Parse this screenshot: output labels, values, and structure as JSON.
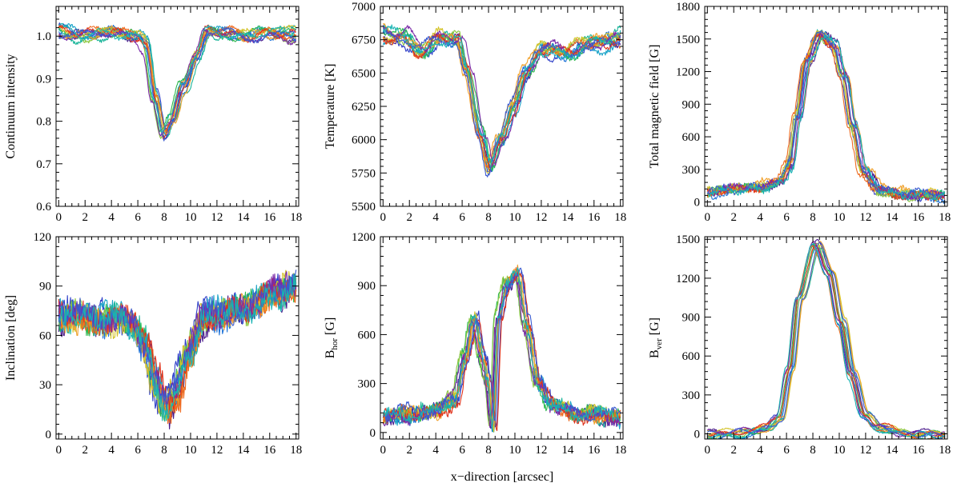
{
  "figure": {
    "shared_xlabel": "x−direction  [arcsec]"
  },
  "colors": {
    "series_palette": [
      "#4b1a8c",
      "#2f3fc8",
      "#1e73d8",
      "#1aa3c8",
      "#1bb59a",
      "#2db84f",
      "#8cc63e",
      "#d4c42c",
      "#f0a02a",
      "#ee6a1f",
      "#e0331c",
      "#7a2aa8",
      "#3a5ad0",
      "#17b3b3"
    ]
  },
  "chart_data": [
    {
      "type": "line",
      "ylabel": "Continuum intensity",
      "ylabel_sub": "",
      "ylabel_unit": "",
      "x_range": [
        0,
        18
      ],
      "xlim": [
        -0.2,
        18.2
      ],
      "ylim": [
        0.6,
        1.07
      ],
      "yticks": [
        0.6,
        0.7,
        0.8,
        0.9,
        1.0
      ],
      "ytick_labels": [
        "0.6",
        "0.7",
        "0.8",
        "0.9",
        "1.0"
      ],
      "xticks": [
        0,
        2,
        4,
        6,
        8,
        10,
        12,
        14,
        16,
        18
      ],
      "xtick_labels": [
        "0",
        "2",
        "4",
        "6",
        "8",
        "10",
        "12",
        "14",
        "16",
        "18"
      ],
      "n_series": 14,
      "profile": [
        [
          0,
          1.01
        ],
        [
          2,
          1.0
        ],
        [
          4,
          1.01
        ],
        [
          6,
          1.0
        ],
        [
          6.6,
          0.98
        ],
        [
          7.3,
          0.86
        ],
        [
          8.0,
          0.77
        ],
        [
          8.6,
          0.8
        ],
        [
          9.4,
          0.88
        ],
        [
          10.5,
          0.95
        ],
        [
          11.3,
          1.01
        ],
        [
          12,
          1.01
        ],
        [
          14,
          1.0
        ],
        [
          16,
          1.01
        ],
        [
          18,
          1.0
        ]
      ],
      "spread": 0.012,
      "noise": 0.004
    },
    {
      "type": "line",
      "ylabel": "Temperature  [K]",
      "ylabel_sub": "",
      "ylabel_unit": "",
      "x_range": [
        0,
        18
      ],
      "xlim": [
        -0.2,
        18.2
      ],
      "ylim": [
        5500,
        7000
      ],
      "yticks": [
        5500,
        5750,
        6000,
        6250,
        6500,
        6750,
        7000
      ],
      "ytick_labels": [
        "5500",
        "5750",
        "6000",
        "6250",
        "6500",
        "6750",
        "7000"
      ],
      "xticks": [
        0,
        2,
        4,
        6,
        8,
        10,
        12,
        14,
        16,
        18
      ],
      "xtick_labels": [
        "0",
        "2",
        "4",
        "6",
        "8",
        "10",
        "12",
        "14",
        "16",
        "18"
      ],
      "n_series": 14,
      "profile": [
        [
          0,
          6800
        ],
        [
          1.5,
          6770
        ],
        [
          3,
          6660
        ],
        [
          4.5,
          6760
        ],
        [
          5.8,
          6750
        ],
        [
          6.5,
          6500
        ],
        [
          7.5,
          6050
        ],
        [
          8.2,
          5780
        ],
        [
          9,
          6000
        ],
        [
          10,
          6250
        ],
        [
          11,
          6500
        ],
        [
          12,
          6680
        ],
        [
          14,
          6650
        ],
        [
          16,
          6720
        ],
        [
          18,
          6760
        ]
      ],
      "spread": 45,
      "noise": 18
    },
    {
      "type": "line",
      "ylabel": "Total magnetic field  [G]",
      "ylabel_sub": "",
      "ylabel_unit": "",
      "x_range": [
        0,
        18
      ],
      "xlim": [
        -0.2,
        18.2
      ],
      "ylim": [
        -40,
        1800
      ],
      "yticks": [
        0,
        300,
        600,
        900,
        1200,
        1500,
        1800
      ],
      "ytick_labels": [
        "0",
        "300",
        "600",
        "900",
        "1200",
        "1500",
        "1800"
      ],
      "xticks": [
        0,
        2,
        4,
        6,
        8,
        10,
        12,
        14,
        16,
        18
      ],
      "xtick_labels": [
        "0",
        "2",
        "4",
        "6",
        "8",
        "10",
        "12",
        "14",
        "16",
        "18"
      ],
      "n_series": 14,
      "profile": [
        [
          0,
          90
        ],
        [
          2,
          120
        ],
        [
          4,
          150
        ],
        [
          5.5,
          200
        ],
        [
          6.2,
          350
        ],
        [
          6.8,
          800
        ],
        [
          7.5,
          1300
        ],
        [
          8.5,
          1540
        ],
        [
          9.5,
          1450
        ],
        [
          10.3,
          1150
        ],
        [
          11,
          700
        ],
        [
          11.8,
          300
        ],
        [
          13,
          120
        ],
        [
          15,
          80
        ],
        [
          18,
          60
        ]
      ],
      "spread": 30,
      "noise": 25
    },
    {
      "type": "line",
      "ylabel": "Inclination  [deg]",
      "ylabel_sub": "",
      "ylabel_unit": "",
      "x_range": [
        0,
        18
      ],
      "xlim": [
        -0.2,
        18.2
      ],
      "ylim": [
        -3,
        120
      ],
      "yticks": [
        0,
        30,
        60,
        90,
        120
      ],
      "ytick_labels": [
        "0",
        "30",
        "60",
        "90",
        "120"
      ],
      "xticks": [
        0,
        2,
        4,
        6,
        8,
        10,
        12,
        14,
        16,
        18
      ],
      "xtick_labels": [
        "0",
        "2",
        "4",
        "6",
        "8",
        "10",
        "12",
        "14",
        "16",
        "18"
      ],
      "n_series": 14,
      "profile": [
        [
          0,
          72
        ],
        [
          2,
          70
        ],
        [
          4,
          70
        ],
        [
          5.5,
          68
        ],
        [
          6.5,
          55
        ],
        [
          7.3,
          32
        ],
        [
          8.0,
          15
        ],
        [
          8.8,
          25
        ],
        [
          9.8,
          50
        ],
        [
          11,
          70
        ],
        [
          12,
          73
        ],
        [
          14,
          76
        ],
        [
          16,
          85
        ],
        [
          18,
          90
        ]
      ],
      "spread": 4,
      "noise": 7
    },
    {
      "type": "line",
      "ylabel": "B",
      "ylabel_sub": "hor",
      "ylabel_unit": "  [G]",
      "x_range": [
        0,
        18
      ],
      "xlim": [
        -0.2,
        18.2
      ],
      "ylim": [
        -40,
        1200
      ],
      "yticks": [
        0,
        300,
        600,
        900,
        1200
      ],
      "ytick_labels": [
        "0",
        "300",
        "600",
        "900",
        "1200"
      ],
      "xticks": [
        0,
        2,
        4,
        6,
        8,
        10,
        12,
        14,
        16,
        18
      ],
      "xtick_labels": [
        "0",
        "2",
        "4",
        "6",
        "8",
        "10",
        "12",
        "14",
        "16",
        "18"
      ],
      "n_series": 14,
      "profile": [
        [
          0,
          90
        ],
        [
          2,
          110
        ],
        [
          4,
          130
        ],
        [
          5.5,
          200
        ],
        [
          6.3,
          450
        ],
        [
          7.0,
          680
        ],
        [
          7.6,
          450
        ],
        [
          8.0,
          320
        ],
        [
          8.4,
          40
        ],
        [
          8.8,
          700
        ],
        [
          9.5,
          900
        ],
        [
          10.3,
          960
        ],
        [
          11,
          650
        ],
        [
          11.8,
          320
        ],
        [
          13,
          160
        ],
        [
          15,
          110
        ],
        [
          18,
          90
        ]
      ],
      "spread": 30,
      "noise": 30
    },
    {
      "type": "line",
      "ylabel": "B",
      "ylabel_sub": "ver",
      "ylabel_unit": "  [G]",
      "x_range": [
        0,
        18
      ],
      "xlim": [
        -0.2,
        18.2
      ],
      "ylim": [
        -40,
        1520
      ],
      "yticks": [
        0,
        300,
        600,
        900,
        1200,
        1500
      ],
      "ytick_labels": [
        "0",
        "300",
        "600",
        "900",
        "1200",
        "1500"
      ],
      "xticks": [
        0,
        2,
        4,
        6,
        8,
        10,
        12,
        14,
        16,
        18
      ],
      "xtick_labels": [
        "0",
        "2",
        "4",
        "6",
        "8",
        "10",
        "12",
        "14",
        "16",
        "18"
      ],
      "n_series": 14,
      "profile": [
        [
          0,
          -10
        ],
        [
          2,
          0
        ],
        [
          3.5,
          20
        ],
        [
          4.5,
          40
        ],
        [
          5.5,
          120
        ],
        [
          6.3,
          500
        ],
        [
          7.0,
          1050
        ],
        [
          8.3,
          1450
        ],
        [
          9.3,
          1250
        ],
        [
          10.2,
          850
        ],
        [
          11,
          450
        ],
        [
          12,
          150
        ],
        [
          13,
          50
        ],
        [
          15,
          0
        ],
        [
          18,
          -10
        ]
      ],
      "spread": 25,
      "noise": 5
    }
  ]
}
